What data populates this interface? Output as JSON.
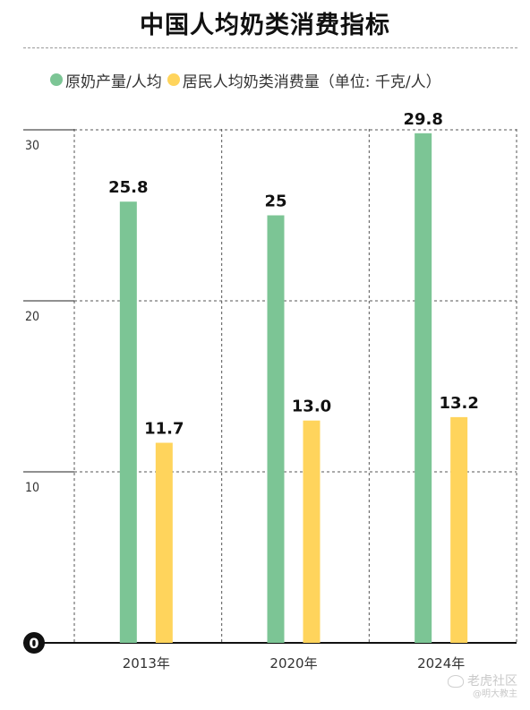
{
  "title": "中国人均奶类消费指标",
  "legend": {
    "items": [
      {
        "label": "原奶产量/人均",
        "color": "#7cc595"
      },
      {
        "label": "居民人均奶类消费量（单位: 千克/人）",
        "color": "#ffd45c"
      }
    ]
  },
  "watermark": {
    "main": "老虎社区",
    "sub": "@明大教主"
  },
  "chart_data": {
    "type": "bar",
    "title": "中国人均奶类消费指标",
    "categories": [
      "2013年",
      "2020年",
      "2024年"
    ],
    "series": [
      {
        "name": "原奶产量/人均",
        "values": [
          25.8,
          25,
          29.8
        ],
        "labels": [
          "25.8",
          "25",
          "29.8"
        ],
        "color": "#7cc595"
      },
      {
        "name": "居民人均奶类消费量（单位: 千克/人）",
        "values": [
          11.7,
          13.0,
          13.2
        ],
        "labels": [
          "11.7",
          "13.0",
          "13.2"
        ],
        "color": "#ffd45c"
      }
    ],
    "ylim": [
      0,
      30
    ],
    "yticks": [
      0,
      10,
      20,
      30
    ],
    "ytick_labels": [
      "0",
      "10",
      "20",
      "30"
    ],
    "grid": true,
    "legend_position": "top"
  }
}
